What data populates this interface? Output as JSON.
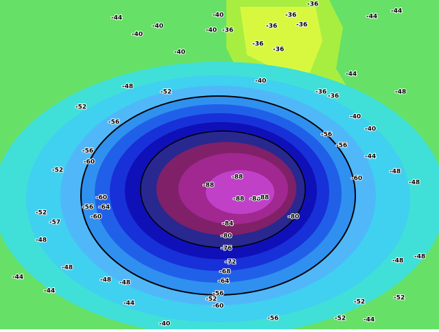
{
  "map": {
    "labels": [
      "-44",
      "-40",
      "-40",
      "-40",
      "-36",
      "-40",
      "-36",
      "-36",
      "-36",
      "-36",
      "-36",
      "-36",
      "-40",
      "-40",
      "-44",
      "-36",
      "-36",
      "-40",
      "-40",
      "-44",
      "-44",
      "-48",
      "-48",
      "-52",
      "-52",
      "-56",
      "-56",
      "-56",
      "-60",
      "-56",
      "-60",
      "-60",
      "-64",
      "-56",
      "-60",
      "-52",
      "-52",
      "-57",
      "-48",
      "-48",
      "-48",
      "-48",
      "-44",
      "-44",
      "-44",
      "-52",
      "-56",
      "-52",
      "-52",
      "-40",
      "-60",
      "-56",
      "-64",
      "-68",
      "-72",
      "-76",
      "-80",
      "-84",
      "-88",
      "-88",
      "-88",
      "-88",
      "-88",
      "-80",
      "-48",
      "-48",
      "-44",
      "-52",
      "-48",
      "-48",
      "-44"
    ]
  }
}
